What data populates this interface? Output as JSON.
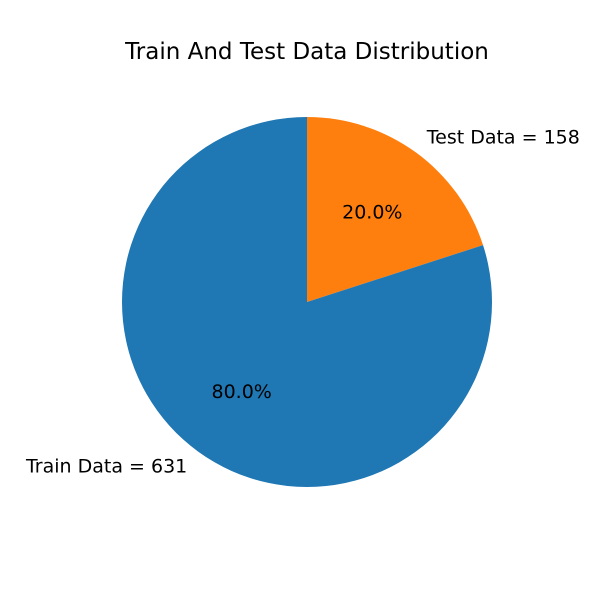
{
  "chart_data": {
    "type": "pie",
    "title": "Train And Test Data Distribution",
    "start_angle": 90,
    "direction": "clockwise",
    "slices": [
      {
        "label": "Test Data = 158",
        "value": 158,
        "percent_label": "20.0%",
        "color": "#ff7f0e"
      },
      {
        "label": "Train Data = 631",
        "value": 631,
        "percent_label": "80.0%",
        "color": "#1f77b4"
      }
    ]
  }
}
